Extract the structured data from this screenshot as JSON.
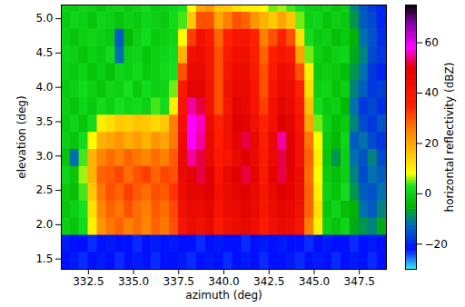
{
  "chart_data": {
    "type": "heatmap",
    "xlabel": "azimuth (deg)",
    "ylabel": "elevation (deg)",
    "xlim": [
      331,
      349
    ],
    "xticks": [
      332.5,
      {
        "value": 335,
        "label": "335.0"
      },
      337.5,
      {
        "value": 340,
        "label": "340.0"
      },
      342.5,
      {
        "value": 345,
        "label": "345.0"
      },
      347.5
    ],
    "ylim": [
      1.35,
      5.2
    ],
    "yticks": [
      1.5,
      {
        "value": 2,
        "label": "2.0"
      },
      2.5,
      {
        "value": 3,
        "label": "3.0"
      },
      3.5,
      {
        "value": 4,
        "label": "4.0"
      },
      4.5,
      {
        "value": 5,
        "label": "5.0"
      }
    ],
    "azimuth": [
      331.25,
      331.75,
      332.25,
      332.75,
      333.25,
      333.75,
      334.25,
      334.75,
      335.25,
      335.75,
      336.25,
      336.75,
      337.25,
      337.75,
      338.25,
      338.75,
      339.25,
      339.75,
      340.25,
      340.75,
      341.25,
      341.75,
      342.25,
      342.75,
      343.25,
      343.75,
      344.25,
      344.75,
      345.25,
      345.75,
      346.25,
      346.75,
      347.25,
      347.75,
      348.25,
      348.75
    ],
    "elevation": [
      1.475,
      1.725,
      1.975,
      2.225,
      2.475,
      2.725,
      2.975,
      3.225,
      3.475,
      3.725,
      3.975,
      4.225,
      4.475,
      4.725,
      4.975,
      5.225
    ],
    "cells": [
      [
        -22,
        -21,
        -23,
        -22,
        -21,
        -22,
        -23,
        -22,
        -21,
        -22,
        -23,
        -22,
        -22,
        -21,
        -23,
        -22,
        -21,
        -22,
        -23,
        -22,
        -21,
        -22,
        -23,
        -22,
        -22,
        -21,
        -23,
        -22,
        -21,
        -22,
        -23,
        -22,
        -21,
        -22,
        -23,
        -22
      ],
      [
        -21,
        -22,
        -22,
        -23,
        -22,
        -21,
        -22,
        -22,
        -23,
        -22,
        -21,
        -22,
        -21,
        -22,
        -22,
        -23,
        -22,
        -21,
        -22,
        -22,
        -23,
        -22,
        -21,
        -22,
        -21,
        -22,
        -22,
        -23,
        -22,
        -21,
        -22,
        -22,
        -23,
        -22,
        -21,
        -22
      ],
      [
        0,
        -2,
        2,
        10,
        22,
        26,
        28,
        25,
        27,
        24,
        28,
        26,
        30,
        40,
        44,
        42,
        45,
        38,
        42,
        44,
        46,
        43,
        38,
        42,
        45,
        44,
        40,
        25,
        10,
        0,
        -2,
        1,
        -6,
        -8,
        -10,
        -6
      ],
      [
        -2,
        0,
        3,
        12,
        24,
        28,
        26,
        30,
        27,
        25,
        29,
        27,
        31,
        42,
        45,
        44,
        47,
        40,
        44,
        46,
        48,
        45,
        39,
        44,
        47,
        46,
        42,
        28,
        12,
        -2,
        1,
        -3,
        -5,
        -12,
        -14,
        -10
      ],
      [
        -1,
        -3,
        4,
        15,
        26,
        30,
        28,
        32,
        29,
        27,
        30,
        29,
        33,
        44,
        47,
        48,
        50,
        42,
        45,
        48,
        50,
        46,
        40,
        46,
        50,
        48,
        43,
        28,
        10,
        0,
        -2,
        2,
        -8,
        -14,
        -15,
        -12
      ],
      [
        1,
        -2,
        6,
        18,
        28,
        29,
        31,
        27,
        30,
        32,
        28,
        31,
        30,
        45,
        48,
        52,
        50,
        40,
        46,
        50,
        52,
        47,
        38,
        48,
        52,
        49,
        44,
        27,
        8,
        -1,
        -3,
        0,
        -10,
        -16,
        -12,
        -14
      ],
      [
        -2,
        -12,
        4,
        18,
        24,
        27,
        25,
        28,
        26,
        24,
        27,
        25,
        29,
        45,
        55,
        52,
        45,
        38,
        40,
        45,
        50,
        45,
        38,
        45,
        52,
        50,
        42,
        28,
        10,
        -2,
        -8,
        0,
        -12,
        -15,
        -10,
        -16
      ],
      [
        0,
        -2,
        2,
        8,
        18,
        20,
        22,
        19,
        21,
        18,
        22,
        20,
        26,
        44,
        58,
        55,
        46,
        36,
        42,
        48,
        52,
        46,
        36,
        46,
        55,
        50,
        42,
        26,
        8,
        -1,
        -4,
        1,
        -14,
        -12,
        -16,
        -18
      ],
      [
        -1,
        1,
        -2,
        2,
        10,
        12,
        15,
        14,
        16,
        15,
        13,
        15,
        25,
        42,
        58,
        56,
        45,
        35,
        42,
        50,
        48,
        42,
        35,
        42,
        50,
        48,
        40,
        20,
        5,
        0,
        -3,
        -1,
        -10,
        -16,
        -18,
        -15
      ],
      [
        0,
        -2,
        1,
        -1,
        2,
        0,
        3,
        1,
        2,
        0,
        4,
        2,
        10,
        40,
        55,
        52,
        42,
        30,
        40,
        48,
        46,
        40,
        32,
        42,
        47,
        45,
        38,
        16,
        2,
        -1,
        0,
        -4,
        -12,
        -18,
        -16,
        -19
      ],
      [
        -1,
        0,
        2,
        0,
        -2,
        1,
        0,
        3,
        -1,
        2,
        0,
        1,
        5,
        38,
        48,
        48,
        42,
        30,
        42,
        46,
        45,
        40,
        30,
        40,
        45,
        44,
        35,
        12,
        0,
        1,
        -2,
        0,
        -10,
        -14,
        -18,
        -17
      ],
      [
        0,
        -1,
        1,
        -2,
        0,
        -3,
        1,
        0,
        2,
        -1,
        0,
        2,
        3,
        30,
        45,
        45,
        40,
        30,
        40,
        44,
        44,
        38,
        30,
        38,
        44,
        42,
        30,
        10,
        -1,
        0,
        -1,
        -3,
        -8,
        -12,
        -18,
        -20
      ],
      [
        1,
        0,
        -2,
        0,
        -1,
        2,
        -12,
        0,
        1,
        -2,
        0,
        1,
        2,
        18,
        42,
        44,
        40,
        30,
        38,
        42,
        42,
        36,
        28,
        36,
        40,
        38,
        20,
        5,
        0,
        -2,
        0,
        1,
        -6,
        -10,
        -16,
        -18
      ],
      [
        0,
        -2,
        0,
        1,
        0,
        -1,
        -14,
        -4,
        0,
        2,
        -1,
        0,
        1,
        8,
        32,
        42,
        38,
        28,
        35,
        40,
        40,
        35,
        25,
        30,
        35,
        30,
        12,
        2,
        -1,
        0,
        -3,
        -1,
        -5,
        -12,
        -15,
        -19
      ],
      [
        -1,
        1,
        0,
        -2,
        1,
        0,
        -2,
        0,
        -1,
        1,
        0,
        -1,
        2,
        4,
        15,
        30,
        30,
        20,
        25,
        30,
        28,
        22,
        18,
        15,
        20,
        15,
        5,
        0,
        1,
        -2,
        0,
        -1,
        -8,
        -14,
        -16,
        -20
      ],
      [
        0,
        -1,
        1,
        0,
        -2,
        0,
        1,
        -1,
        0,
        2,
        -1,
        0,
        1,
        3,
        8,
        20,
        22,
        15,
        15,
        12,
        10,
        10,
        8,
        5,
        6,
        4,
        2,
        0,
        -1,
        1,
        -2,
        0,
        -10,
        -15,
        -18,
        -20
      ]
    ],
    "colorbar": {
      "label": "horizontal reflectivity (dBZ)",
      "range": [
        -30,
        75
      ],
      "ticks": [
        -20,
        0,
        20,
        40,
        60
      ]
    }
  }
}
